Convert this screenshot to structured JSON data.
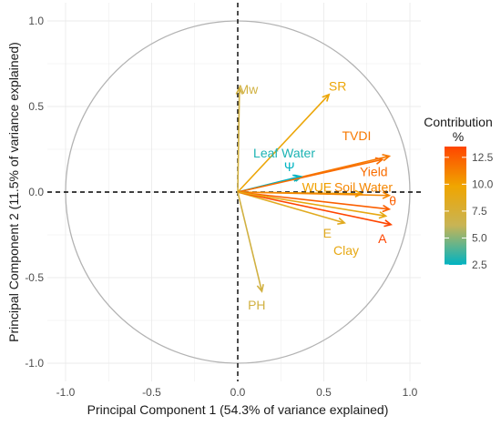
{
  "chart_data": {
    "type": "scatter",
    "subtype": "pca-correlation-circle",
    "title": "",
    "xlabel": "Principal Component 1 (54.3% of variance explained)",
    "ylabel": "Principal Component 2 (11.5% of variance explained)",
    "xlim": [
      -1.02,
      1.02
    ],
    "ylim": [
      -1.02,
      1.02
    ],
    "x_ticks": [
      -1.0,
      -0.5,
      0.0,
      0.5,
      1.0
    ],
    "x_tick_labels": [
      "-1.0",
      "-0.5",
      "0.0",
      "0.5",
      "1.0"
    ],
    "y_ticks": [
      -1.0,
      -0.5,
      0.0,
      0.5,
      1.0
    ],
    "y_tick_labels": [
      "-1.0",
      "-0.5",
      "0.0",
      "0.5",
      "1.0"
    ],
    "grid": true,
    "legend": {
      "title": "Contribution\n%",
      "placement": "right",
      "range": [
        2.5,
        13.5
      ],
      "ticks": [
        2.5,
        5.0,
        7.5,
        10.0,
        12.5
      ],
      "tick_labels": [
        "2.5",
        "5.0",
        "7.5",
        "10.0",
        "12.5"
      ],
      "color_stops": [
        "#00b3c2",
        "#c8b455",
        "#f0a500",
        "#ff4500"
      ]
    },
    "variables": [
      {
        "name": "Mw",
        "x": 0.01,
        "y": 0.61,
        "contribution": 7.0,
        "label_x": 0.06,
        "label_y": 0.6
      },
      {
        "name": "SR",
        "x": 0.53,
        "y": 0.57,
        "contribution": 9.5,
        "label_x": 0.58,
        "label_y": 0.62
      },
      {
        "name": "TVDI",
        "x": 0.88,
        "y": 0.21,
        "contribution": 11.5,
        "label_x": 0.69,
        "label_y": 0.33
      },
      {
        "name": "Leaf Water",
        "x": 0.37,
        "y": 0.09,
        "contribution": 3.0,
        "label_x": 0.27,
        "label_y": 0.23
      },
      {
        "name": "Ψ",
        "x": 0.36,
        "y": 0.09,
        "contribution": 2.5,
        "label_x": 0.3,
        "label_y": 0.15
      },
      {
        "name": "Yield",
        "x": 0.84,
        "y": 0.19,
        "contribution": 12.0,
        "label_x": 0.79,
        "label_y": 0.12
      },
      {
        "name": "WUE",
        "x": 0.72,
        "y": -0.01,
        "contribution": 10.0,
        "label_x": 0.46,
        "label_y": 0.03
      },
      {
        "name": "Soil Water",
        "x": 0.88,
        "y": -0.02,
        "contribution": 11.0,
        "label_x": 0.73,
        "label_y": 0.03
      },
      {
        "name": "θ",
        "x": 0.88,
        "y": -0.1,
        "contribution": 12.5,
        "label_x": 0.9,
        "label_y": -0.05
      },
      {
        "name": "E",
        "x": 0.62,
        "y": -0.18,
        "contribution": 8.5,
        "label_x": 0.52,
        "label_y": -0.24
      },
      {
        "name": "A",
        "x": 0.89,
        "y": -0.19,
        "contribution": 13.5,
        "label_x": 0.84,
        "label_y": -0.27
      },
      {
        "name": "Clay",
        "x": 0.86,
        "y": -0.14,
        "contribution": 9.0,
        "label_x": 0.63,
        "label_y": -0.34
      },
      {
        "name": "PH",
        "x": 0.14,
        "y": -0.58,
        "contribution": 7.0,
        "label_x": 0.11,
        "label_y": -0.66
      }
    ]
  }
}
